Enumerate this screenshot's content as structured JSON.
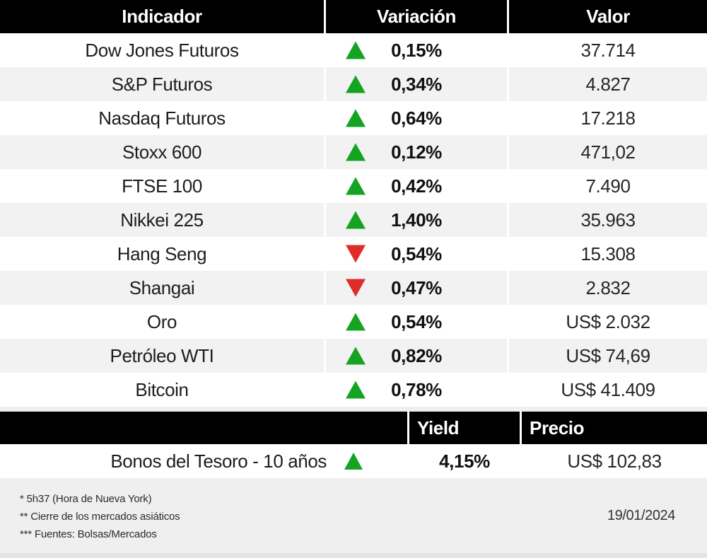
{
  "market_table": {
    "headers": [
      "Indicador",
      "Variación",
      "Valor"
    ],
    "rows": [
      {
        "indicator": "Dow Jones Futuros",
        "direction": "up",
        "variation": "0,15%",
        "value": "37.714"
      },
      {
        "indicator": "S&P Futuros",
        "direction": "up",
        "variation": "0,34%",
        "value": "4.827"
      },
      {
        "indicator": "Nasdaq Futuros",
        "direction": "up",
        "variation": "0,64%",
        "value": "17.218"
      },
      {
        "indicator": "Stoxx 600",
        "direction": "up",
        "variation": "0,12%",
        "value": "471,02"
      },
      {
        "indicator": "FTSE 100",
        "direction": "up",
        "variation": "0,42%",
        "value": "7.490"
      },
      {
        "indicator": "Nikkei 225",
        "direction": "up",
        "variation": "1,40%",
        "value": "35.963"
      },
      {
        "indicator": "Hang Seng",
        "direction": "down",
        "variation": "0,54%",
        "value": "15.308"
      },
      {
        "indicator": "Shangai",
        "direction": "down",
        "variation": "0,47%",
        "value": "2.832"
      },
      {
        "indicator": "Oro",
        "direction": "up",
        "variation": "0,54%",
        "value": "US$ 2.032"
      },
      {
        "indicator": "Petróleo WTI",
        "direction": "up",
        "variation": "0,82%",
        "value": "US$ 74,69"
      },
      {
        "indicator": "Bitcoin",
        "direction": "up",
        "variation": "0,78%",
        "value": "US$ 41.409"
      }
    ]
  },
  "bond_table": {
    "headers": [
      "Yield",
      "Precio"
    ],
    "row": {
      "label": "Bonos del Tesoro - 10 años",
      "direction": "up",
      "yield": "4,15%",
      "price": "US$ 102,83"
    }
  },
  "footer": {
    "notes": [
      "* 5h37 (Hora de Nueva York)",
      "** Cierre de los mercados asiáticos",
      "*** Fuentes: Bolsas/Mercados"
    ],
    "date": "19/01/2024"
  },
  "colors": {
    "positive": "#15a322",
    "negative": "#e02b2b",
    "header_bg": "#000000",
    "header_text": "#ffffff",
    "row_alt_bg": "#f2f2f2",
    "footer_bg": "#efefef"
  },
  "chart_data": {
    "type": "table",
    "title": "Indicadores de mercado",
    "columns": [
      "Indicador",
      "Variación",
      "Valor"
    ],
    "rows": [
      [
        "Dow Jones Futuros",
        "+0,15%",
        "37.714"
      ],
      [
        "S&P Futuros",
        "+0,34%",
        "4.827"
      ],
      [
        "Nasdaq Futuros",
        "+0,64%",
        "17.218"
      ],
      [
        "Stoxx 600",
        "+0,12%",
        "471,02"
      ],
      [
        "FTSE 100",
        "+0,42%",
        "7.490"
      ],
      [
        "Nikkei 225",
        "+1,40%",
        "35.963"
      ],
      [
        "Hang Seng",
        "-0,54%",
        "15.308"
      ],
      [
        "Shangai",
        "-0,47%",
        "2.832"
      ],
      [
        "Oro",
        "+0,54%",
        "US$ 2.032"
      ],
      [
        "Petróleo WTI",
        "+0,82%",
        "US$ 74,69"
      ],
      [
        "Bitcoin",
        "+0,78%",
        "US$ 41.409"
      ],
      [
        "Bonos del Tesoro - 10 años",
        "Yield +4,15%",
        "US$ 102,83"
      ]
    ],
    "annotations": [
      "* 5h37 (Hora de Nueva York)",
      "** Cierre de los mercados asiáticos",
      "*** Fuentes: Bolsas/Mercados",
      "19/01/2024"
    ]
  }
}
